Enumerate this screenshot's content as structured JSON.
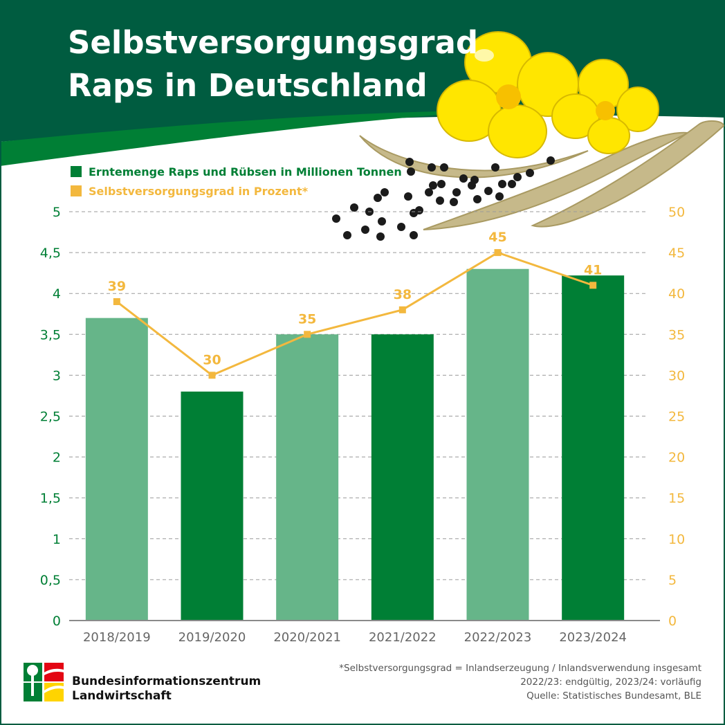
{
  "header": {
    "title_line1": "Selbstversorgungsgrad",
    "title_line2": "Raps in Deutschland"
  },
  "colors": {
    "header_green": "#005c40",
    "bar_dark": "#007f35",
    "bar_light": "#66b589",
    "line_orange": "#f3b83e",
    "axis_left_text": "#007f35",
    "axis_right_text": "#f3b83e",
    "flower_yellow": "#ffe600",
    "pod": "#c6b98a"
  },
  "legend": [
    {
      "label": "Erntemenge Raps und Rübsen in Millionen Tonnen",
      "color": "#007f35"
    },
    {
      "label": "Selbstversorgungsgrad in Prozent*",
      "color": "#f3b83e"
    }
  ],
  "chart_data": {
    "type": "bar",
    "categories": [
      "2018/2019",
      "2019/2020",
      "2020/2021",
      "2021/2022",
      "2022/2023",
      "2023/2024"
    ],
    "series": [
      {
        "name": "Erntemenge Raps und Rübsen in Millionen Tonnen",
        "type": "bar",
        "axis": "left",
        "values": [
          3.7,
          2.8,
          3.5,
          3.5,
          4.3,
          4.22
        ],
        "colors": [
          "#66b589",
          "#007f35",
          "#66b589",
          "#007f35",
          "#66b589",
          "#007f35"
        ]
      },
      {
        "name": "Selbstversorgungsgrad in Prozent*",
        "type": "line",
        "axis": "right",
        "values": [
          39,
          30,
          35,
          38,
          45,
          41
        ],
        "labels": [
          "39",
          "30",
          "35",
          "38",
          "45",
          "41"
        ]
      }
    ],
    "y_left": {
      "range": [
        0,
        5
      ],
      "ticks": [
        0,
        0.5,
        1,
        1.5,
        2,
        2.5,
        3,
        3.5,
        4,
        4.5,
        5
      ],
      "tick_labels": [
        "0",
        "0,5",
        "1",
        "1,5",
        "2",
        "2,5",
        "3",
        "3,5",
        "4",
        "4,5",
        "5"
      ]
    },
    "y_right": {
      "range": [
        0,
        50
      ],
      "ticks": [
        0,
        5,
        10,
        15,
        20,
        25,
        30,
        35,
        40,
        45,
        50
      ],
      "tick_labels": [
        "0",
        "5",
        "10",
        "15",
        "20",
        "25",
        "30",
        "35",
        "40",
        "45",
        "50"
      ]
    },
    "grid": "horizontal-dashed",
    "legend_position": "top-left"
  },
  "footer": {
    "org_line1": "Bundesinformationszentrum",
    "org_line2": "Landwirtschaft",
    "note_line1": "*Selbstversorgungsgrad = Inlandserzeugung / Inlandsverwendung insgesamt",
    "note_line2": "2022/23: endgültig, 2023/24: vorläufig",
    "note_line3": "Quelle: Statistisches Bundesamt, BLE"
  }
}
